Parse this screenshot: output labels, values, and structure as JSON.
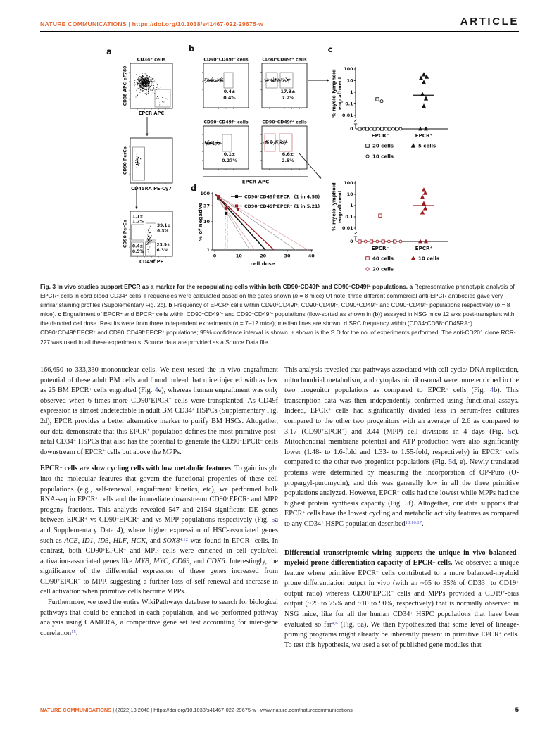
{
  "header": {
    "left": "NATURE COMMUNICATIONS | https://doi.org/10.1038/s41467-022-29675-w",
    "article_label": "ARTICLE"
  },
  "figure": {
    "panel_a": {
      "label": "a",
      "plot1": {
        "title": "CD34⁺ cells",
        "ylabel": "CD38 APC-eF780",
        "xlabel": "EPCR APC"
      },
      "plot2": {
        "ylabel": "CD90 PerCp",
        "xlabel": "CD45RA PE-Cy7"
      },
      "plot3": {
        "ylabel": "CD90 PerCp",
        "xlabel": "CD49f PE",
        "gate_labels": [
          [
            "1.1±",
            "1.2%"
          ],
          [
            "39.1±",
            "6.3%"
          ],
          [
            "0.4±",
            "0.5%"
          ],
          [
            "23.9±",
            "6.3%"
          ]
        ]
      }
    },
    "panel_b": {
      "label": "b",
      "xlabel": "EPCR APC",
      "plots": [
        {
          "title": "CD90⁺CD49f⁻ cells",
          "stat": [
            "0.4±",
            "0.4%"
          ],
          "accent": false
        },
        {
          "title": "CD90⁺CD49f⁺ cells",
          "stat": [
            "17.3±",
            "7.2%"
          ],
          "accent": false
        },
        {
          "title": "CD90⁻CD49f⁻ cells",
          "stat": [
            "0.1±",
            "0.27%"
          ],
          "accent": false
        },
        {
          "title": "CD90⁻CD49f⁺ cells",
          "stat": [
            "6.6±",
            "2.5%"
          ],
          "accent": true
        }
      ]
    },
    "panel_c": {
      "label": "c",
      "ylabel_line1": "% myelo-lymphoid",
      "ylabel_line2": "engraftment",
      "yticks": [
        "100",
        "10",
        "1",
        "0.1",
        "0.01"
      ],
      "zero_label": "0",
      "charts": [
        {
          "color": "#141414",
          "categories": [
            "EPCR⁻",
            "EPCR⁺"
          ],
          "neg_points": [
            {
              "m": "square",
              "dx": -4,
              "v": 0.25
            },
            {
              "m": "circle",
              "dx": 2,
              "v": 0.17
            }
          ],
          "neg_zeros": 12,
          "pos_points": [
            {
              "dx": 0,
              "v": 33
            },
            {
              "dx": 4,
              "v": 21
            },
            {
              "dx": -4,
              "v": 16
            },
            {
              "dx": 0,
              "v": 7
            },
            {
              "dx": -2,
              "v": 0.66
            },
            {
              "dx": 3,
              "v": 0.28
            },
            {
              "dx": 0,
              "v": 0.062
            }
          ],
          "pos_zeros": 2,
          "median": 0.55,
          "legend_rows": [
            [
              {
                "m": "square",
                "t": "20 cells"
              },
              {
                "m": "triangle",
                "t": "5 cells"
              }
            ],
            [
              {
                "m": "circle",
                "t": "10 cells"
              }
            ]
          ]
        },
        {
          "color": "#9c1c22",
          "categories": [
            "EPCR⁻",
            "EPCR⁺"
          ],
          "neg_points": [
            {
              "m": "square",
              "dx": 0,
              "v": 0.13
            }
          ],
          "neg_zeros": 8,
          "pos_points": [
            {
              "dx": 0,
              "v": 24
            },
            {
              "dx": 2,
              "v": 13
            },
            {
              "dx": -2,
              "v": 5.6
            },
            {
              "dx": 0,
              "v": 1.5
            },
            {
              "dx": 2,
              "v": 0.56
            },
            {
              "dx": -2,
              "v": 0.24
            }
          ],
          "pos_zeros": 2,
          "median": 1.0,
          "legend_rows": [
            [
              {
                "m": "square",
                "t": "40 cells"
              },
              {
                "m": "triangle",
                "t": "10 cells"
              }
            ],
            [
              {
                "m": "circle",
                "t": "20 cells"
              }
            ]
          ]
        }
      ]
    },
    "panel_d": {
      "label": "d",
      "ylabel": "% of negative",
      "xlabel": "cell dose",
      "yticks": [
        "100",
        "37",
        "10",
        "1"
      ],
      "ytick_values": [
        100,
        37,
        10,
        1
      ],
      "xticks": [
        "0",
        "10",
        "20",
        "30",
        "40"
      ],
      "xtick_values": [
        0,
        10,
        20,
        30,
        40
      ],
      "series": [
        {
          "name": "CD90⁺CD49f⁺EPCR⁺ (1 in 4.58)",
          "color": "#141414",
          "ci_color": "#909090",
          "x_at_1": 21,
          "ci": [
            14.5,
            33.5
          ],
          "points": [
            [
              1.5,
              67
            ],
            [
              4.7,
              20
            ]
          ]
        },
        {
          "name": "CD90⁻CD49f⁺EPCR⁺ (1 in 5.21)",
          "color": "#9c1c22",
          "ci_color": "#d8959a",
          "x_at_1": 24.5,
          "ci": [
            16.5,
            38.5
          ],
          "points": [
            [
              1.5,
              79
            ],
            [
              4.7,
              30
            ],
            [
              9.6,
              27
            ]
          ]
        }
      ]
    },
    "caption_html": "<b>Fig. 3 In vivo studies support EPCR as a marker for the repopulating cells within both CD90<sup>+</sup>CD49f<sup>+</sup> and CD90<sup>&#8722;</sup>CD49f<sup>+</sup> populations. a</b> Representative phenotypic analysis of EPCR<sup>+</sup> cells in cord blood CD34<sup>+</sup> cells. Frequencies were calculated based on the gates shown (<i>n</i>&nbsp;=&nbsp;8 mice) Of note, three different commercial anti-EPCR antibodies gave very similar staining profiles (Supplementary Fig. 2c). <b>b</b> Frequency of EPCR<sup>+</sup> cells within CD90<sup>+</sup>CD49f<sup>+</sup>, CD90<sup>&#8722;</sup>CD49f<sup>+</sup>, CD90<sup>+</sup>CD49f<sup>&#8722;</sup> and CD90<sup>&#8722;</sup>CD49f<sup>&#8722;</sup> populations respectively (<i>n</i>&nbsp;=&nbsp;8 mice). <b>c</b> Engraftment of EPCR<sup>+</sup> and EPCR<sup>&#8722;</sup> cells within CD90<sup>+</sup>CD49f<sup>+</sup> and CD90<sup>&#8722;</sup>CD49f<sup>+</sup> populations (flow-sorted as shown in (<b>b</b>)) assayed in NSG mice 12 wks post-transplant with the denoted cell dose. Results were from three independent experiments (<i>n</i>&nbsp;=&nbsp;7&#8211;12 mice); median lines are shown. <b>d</b> SRC frequency within (CD34<sup>+</sup>CD38<sup>&#8722;</sup>CD45RA<sup>&#8722;</sup>) CD90<sup>+</sup>CD49f<sup>+</sup>EPCR<sup>+</sup> and CD90<sup>&#8722;</sup>CD49f<sup>+</sup>EPCR<sup>+</sup> populations; 95% confidence interval is shown. &#177; shown is the S.D for the no. of experiments performed. The anti-CD201 clone RCR-227 was used in all these experiments. Source data are provided as a Source Data file."
  },
  "body": {
    "left": [
      "166,650 to 333,330 mononuclear cells. We next tested the in vivo engraftment potential of these adult BM cells and found indeed that mice injected with as few as 25 BM EPCR<sup>+</sup> cells engrafted (Fig. <span class='lnk'>4</span>e), whereas human engraftment was only observed when 6 times more CD90<sup>+</sup>EPCR<sup>&#8722;</sup> cells were transplanted. As CD49f expression is almost undetectable in adult BM CD34<sup>+</sup> HSPCs (Supplementary Fig. 2d), EPCR provides a better alternative marker to purify BM HSCs. Altogether, our data demonstrate that this EPCR<sup>+</sup> population defines the most primitive post-natal CD34<sup>+</sup> HSPCs that also has the potential to generate the CD90<sup>+</sup>EPCR<sup>&#8722;</sup> cells downstream of EPCR<sup>+</sup> cells but above the MPPs.",
      "<b>EPCR<sup>+</sup> cells are slow cycling cells with low metabolic features</b>. To gain insight into the molecular features that govern the functional properties of these cell populations (e.g., self-renewal, engraftment kinetics, etc), we performed bulk RNA-seq in EPCR<sup>+</sup> cells and the immediate downstream CD90<sup>+</sup>EPCR<sup>-</sup> and MPP progeny fractions. This analysis revealed 547 and 2154 significant DE genes between EPCR<sup>+</sup> vs CD90<sup>+</sup>EPCR<sup>&#8722;</sup> and vs MPP populations respectively (Fig. <span class='lnk'>5</span>a and Supplementary Data 4), where higher expression of HSC-associated genes such as <i>ACE</i>, <i>ID1</i>, <i>ID3</i>, <i>HLF</i>, <i>HCK</i>, and <i>SOX8</i><sup class='lnk'>4,12</sup> was found in EPCR<sup>+</sup> cells. In contrast, both CD90<sup>+</sup>EPCR<sup>&#8722;</sup> and MPP cells were enriched in cell cycle/cell activation-associated genes like <i>MYB</i>, <i>MYC</i>, <i>CD69</i>, and <i>CDK6</i>. Interestingly, the significance of the differential expression of these genes increased from CD90<sup>+</sup>EPCR<sup>&#8722;</sup> to MPP, suggesting a further loss of self-renewal and increase in cell activation when primitive cells become MPPs.",
      "Furthermore, we used the entire WikiPathways database to search for biological pathways that could be enriched in each population, and we performed pathway analysis using CAMERA, a competitive gene set test accounting for inter-gene correlation<sup class='lnk'>15</sup>."
    ],
    "right": [
      "This analysis revealed that pathways associated with cell cycle/ DNA replication, mitochondrial metabolism, and cytoplasmic ribosomal were more enriched in the two progenitor populations as compared to EPCR<sup>+</sup> cells (Fig. <span class='lnk'>4</span>b). This transcription data was then independently confirmed using functional assays. Indeed, EPCR<sup>+</sup> cells had significantly divided less in serum-free cultures compared to the other two progenitors with an average of 2.6 as compared to 3.17 (CD90<sup>+</sup>EPCR<sup>&#8722;</sup>) and 3.44 (MPP) cell divisions in 4 days (Fig. <span class='lnk'>5</span>c). Mitochondrial membrane potential and ATP production were also significantly lower (1.48- to 1.6-fold and 1.33- to 1.55-fold, respectively) in EPCR<sup>+</sup> cells compared to the other two progenitor populations (Fig. <span class='lnk'>5</span>d, e). Newly translated proteins were determined by measuring the incorporation of OP-Puro (O-propargyl-puromycin), and this was generally low in all the three primitive populations analyzed. However, EPCR<sup>+</sup> cells had the lowest while MPPs had the highest protein synthesis capacity (Fig. <span class='lnk'>5</span>f). Altogether, our data supports that EPCR<sup>+</sup> cells have the lowest cycling and metabolic activity features as compared to any CD34<sup>+</sup> HSPC population described<sup class='lnk'>10,16,17</sup>.",
      "<b>Differential transcriptomic wiring supports the unique in vivo balanced-myeloid prone differentiation capacity of EPCR<sup>+</sup> cells.</b> We observed a unique feature where primitive EPCR<sup>+</sup> cells contributed to a more balanced-myeloid prone differentiation output in vivo (with an ~65 to 35% of CD33<sup>+</sup> to CD19<sup>+</sup> output ratio) whereas CD90<sup>+</sup>EPCR<sup>&#8722;</sup> cells and MPPs provided a CD19<sup>+</sup>-bias output (~25 to 75% and ~10 to 90%, respectively) that is normally observed in NSG mice, like for all the human CD34<sup>+</sup> HSPC populations that have been evaluated so far<sup class='lnk'>4,6</sup> (Fig. <span class='lnk'>6</span>a). We then hypothesized that some level of lineage-priming programs might already be inherently present in primitive EPCR<sup>+</sup> cells. To test this hypothesis, we used a set of published gene modules that"
    ]
  },
  "footer": {
    "journal": "NATURE COMMUNICATIONS",
    "rest": " | (2022)13:2048 | https://doi.org/10.1038/s41467-022-29675-w | www.nature.com/naturecommunications",
    "page": "5"
  }
}
